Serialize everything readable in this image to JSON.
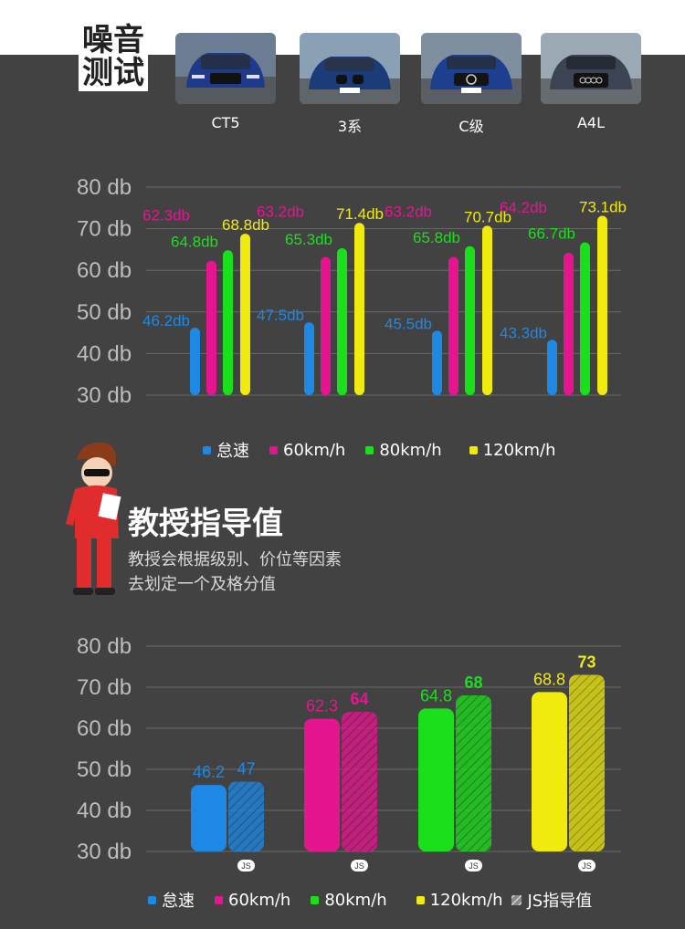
{
  "header": {
    "title_line1": "噪音",
    "title_line2": "测试"
  },
  "cars": [
    {
      "label": "CT5"
    },
    {
      "label": "3系"
    },
    {
      "label": "C级"
    },
    {
      "label": "A4L"
    }
  ],
  "colors": {
    "idle": "#1e88e5",
    "kmh60": "#e5158f",
    "kmh80": "#19e01a",
    "kmh120": "#f0ea0f",
    "background": "#424242"
  },
  "legend": {
    "idle": "怠速",
    "kmh60": "60km/h",
    "kmh80": "80km/h",
    "kmh120": "120km/h",
    "guide": "JS指导值"
  },
  "section": {
    "title": "教授指导值",
    "desc_line1": "教授会根据级别、价位等因素",
    "desc_line2": "去划定一个及格分值"
  },
  "chart_data": [
    {
      "type": "bar",
      "categories": [
        "CT5",
        "3系",
        "C级",
        "A4L"
      ],
      "ylim": [
        30,
        80
      ],
      "ytick_labels": [
        "80 db",
        "70 db",
        "60 db",
        "50 db",
        "40 db",
        "30 db"
      ],
      "grid": true,
      "legend_position": "bottom",
      "series": [
        {
          "name": "怠速",
          "values": [
            46.2,
            47.5,
            45.5,
            43.3
          ],
          "labels": [
            "46.2db",
            "47.5db",
            "45.5db",
            "43.3db"
          ]
        },
        {
          "name": "60km/h",
          "values": [
            62.3,
            63.2,
            63.2,
            64.2
          ],
          "labels": [
            "62.3db",
            "63.2db",
            "63.2db",
            "64.2db"
          ]
        },
        {
          "name": "80km/h",
          "values": [
            64.8,
            65.3,
            65.8,
            66.7
          ],
          "labels": [
            "64.8db",
            "65.3db",
            "65.8db",
            "66.7db"
          ]
        },
        {
          "name": "120km/h",
          "values": [
            68.8,
            71.4,
            70.7,
            73.1
          ],
          "labels": [
            "68.8db",
            "71.4db",
            "70.7db",
            "73.1db"
          ]
        }
      ]
    },
    {
      "type": "bar",
      "ylim": [
        30,
        80
      ],
      "ytick_labels": [
        "80 db",
        "70 db",
        "60 db",
        "50 db",
        "40 db",
        "30 db"
      ],
      "grid": true,
      "legend_position": "bottom",
      "groups": [
        {
          "name": "怠速",
          "measured": 46.2,
          "measured_label": "46.2",
          "guide": 47,
          "guide_label": "47",
          "badge": "JS"
        },
        {
          "name": "60km/h",
          "measured": 62.3,
          "measured_label": "62.3",
          "guide": 64,
          "guide_label": "64",
          "badge": "JS"
        },
        {
          "name": "80km/h",
          "measured": 64.8,
          "measured_label": "64.8",
          "guide": 68,
          "guide_label": "68",
          "badge": "JS"
        },
        {
          "name": "120km/h",
          "measured": 68.8,
          "measured_label": "68.8",
          "guide": 73,
          "guide_label": "73",
          "badge": "JS"
        }
      ]
    }
  ]
}
